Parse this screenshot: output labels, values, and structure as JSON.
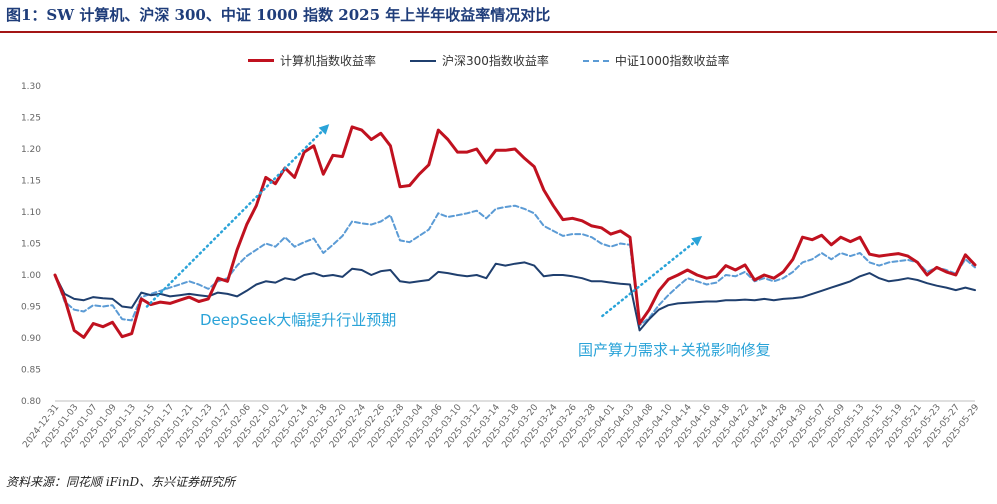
{
  "figure_title": "图1：SW 计算机、沪深 300、中证 1000 指数 2025 年上半年收益率情况对比",
  "source_note": "资料来源：同花顺 iFinD、东兴证券研究所",
  "colors": {
    "computer": "#c0111f",
    "hs300": "#1f3f6e",
    "zz1000": "#5b9bd5",
    "annotation": "#2aa3d8",
    "title": "#1f3d7a"
  },
  "chart_data": {
    "type": "line",
    "ylim": [
      0.8,
      1.3
    ],
    "yticks": [
      "1.30",
      "1.25",
      "1.20",
      "1.15",
      "1.10",
      "1.05",
      "1.00",
      "0.95",
      "0.90",
      "0.85",
      "0.80"
    ],
    "x_tick_labels": [
      "2024-12-31",
      "2025-01-03",
      "2025-01-07",
      "2025-01-09",
      "2025-01-13",
      "2025-01-15",
      "2025-01-17",
      "2025-01-21",
      "2025-01-23",
      "2025-01-27",
      "2025-02-06",
      "2025-02-10",
      "2025-02-12",
      "2025-02-14",
      "2025-02-18",
      "2025-02-20",
      "2025-02-24",
      "2025-02-26",
      "2025-02-28",
      "2025-03-04",
      "2025-03-06",
      "2025-03-10",
      "2025-03-12",
      "2025-03-14",
      "2025-03-18",
      "2025-03-20",
      "2025-03-24",
      "2025-03-26",
      "2025-03-28",
      "2025-04-01",
      "2025-04-03",
      "2025-04-08",
      "2025-04-10",
      "2025-04-14",
      "2025-04-16",
      "2025-04-18",
      "2025-04-22",
      "2025-04-24",
      "2025-04-28",
      "2025-04-30",
      "2025-05-07",
      "2025-05-09",
      "2025-05-13",
      "2025-05-15",
      "2025-05-19",
      "2025-05-21",
      "2025-05-23",
      "2025-05-27",
      "2025-05-29"
    ],
    "series": [
      {
        "name": "计算机指数收益率",
        "key": "computer",
        "values": [
          1.0,
          0.963,
          0.912,
          0.901,
          0.923,
          0.918,
          0.925,
          0.902,
          0.907,
          0.962,
          0.953,
          0.957,
          0.955,
          0.96,
          0.965,
          0.958,
          0.962,
          0.995,
          0.99,
          1.04,
          1.08,
          1.11,
          1.155,
          1.145,
          1.17,
          1.155,
          1.195,
          1.205,
          1.16,
          1.19,
          1.188,
          1.235,
          1.23,
          1.215,
          1.225,
          1.205,
          1.14,
          1.142,
          1.16,
          1.175,
          1.23,
          1.215,
          1.195,
          1.195,
          1.2,
          1.178,
          1.198,
          1.198,
          1.2,
          1.185,
          1.172,
          1.135,
          1.11,
          1.088,
          1.09,
          1.086,
          1.078,
          1.075,
          1.065,
          1.07,
          1.06,
          0.923,
          0.945,
          0.975,
          0.993,
          1.0,
          1.008,
          1.0,
          0.995,
          0.998,
          1.015,
          1.008,
          1.016,
          0.992,
          1.0,
          0.995,
          1.005,
          1.025,
          1.06,
          1.056,
          1.063,
          1.048,
          1.06,
          1.053,
          1.06,
          1.033,
          1.03,
          1.032,
          1.034,
          1.03,
          1.02,
          1.0,
          1.012,
          1.005,
          1.0,
          1.032,
          1.016
        ]
      },
      {
        "name": "沪深300指数收益率",
        "key": "hs300",
        "values": [
          1.0,
          0.97,
          0.962,
          0.96,
          0.965,
          0.963,
          0.962,
          0.95,
          0.948,
          0.972,
          0.968,
          0.97,
          0.966,
          0.968,
          0.97,
          0.968,
          0.966,
          0.972,
          0.97,
          0.966,
          0.975,
          0.985,
          0.99,
          0.988,
          0.995,
          0.992,
          1.0,
          1.003,
          0.998,
          1.0,
          0.997,
          1.01,
          1.008,
          1.0,
          1.006,
          1.008,
          0.99,
          0.988,
          0.99,
          0.992,
          1.005,
          1.003,
          1.0,
          0.998,
          1.0,
          0.995,
          1.018,
          1.015,
          1.018,
          1.02,
          1.015,
          0.998,
          1.0,
          1.0,
          0.998,
          0.995,
          0.99,
          0.99,
          0.988,
          0.986,
          0.985,
          0.912,
          0.93,
          0.945,
          0.952,
          0.955,
          0.956,
          0.957,
          0.958,
          0.958,
          0.96,
          0.96,
          0.961,
          0.96,
          0.962,
          0.96,
          0.962,
          0.963,
          0.965,
          0.97,
          0.975,
          0.98,
          0.985,
          0.99,
          0.998,
          1.003,
          0.995,
          0.99,
          0.992,
          0.995,
          0.992,
          0.987,
          0.983,
          0.98,
          0.976,
          0.98,
          0.976
        ]
      },
      {
        "name": "中证1000指数收益率",
        "key": "zz1000",
        "values": [
          1.0,
          0.958,
          0.945,
          0.942,
          0.952,
          0.95,
          0.952,
          0.93,
          0.928,
          0.965,
          0.97,
          0.975,
          0.98,
          0.985,
          0.99,
          0.985,
          0.978,
          0.99,
          0.995,
          1.015,
          1.03,
          1.04,
          1.05,
          1.045,
          1.06,
          1.045,
          1.052,
          1.058,
          1.035,
          1.048,
          1.062,
          1.085,
          1.082,
          1.08,
          1.085,
          1.095,
          1.055,
          1.052,
          1.062,
          1.072,
          1.098,
          1.092,
          1.095,
          1.098,
          1.102,
          1.09,
          1.105,
          1.108,
          1.11,
          1.105,
          1.098,
          1.078,
          1.07,
          1.062,
          1.065,
          1.065,
          1.06,
          1.05,
          1.045,
          1.05,
          1.048,
          0.92,
          0.932,
          0.952,
          0.968,
          0.982,
          0.995,
          0.99,
          0.985,
          0.988,
          1.0,
          0.998,
          1.005,
          0.99,
          0.995,
          0.99,
          0.995,
          1.005,
          1.02,
          1.025,
          1.035,
          1.025,
          1.035,
          1.03,
          1.035,
          1.02,
          1.015,
          1.02,
          1.022,
          1.024,
          1.02,
          1.005,
          1.012,
          1.008,
          1.002,
          1.025,
          1.012
        ]
      }
    ],
    "annotations": [
      {
        "text": "DeepSeek大幅提升行业预期"
      },
      {
        "text": "国产算力需求+关税影响修复"
      }
    ],
    "trend_arrows": [
      {
        "from": [
          0.1,
          0.95
        ],
        "to": [
          0.295,
          1.235
        ]
      },
      {
        "from": [
          0.595,
          0.935
        ],
        "to": [
          0.7,
          1.058
        ]
      }
    ]
  }
}
